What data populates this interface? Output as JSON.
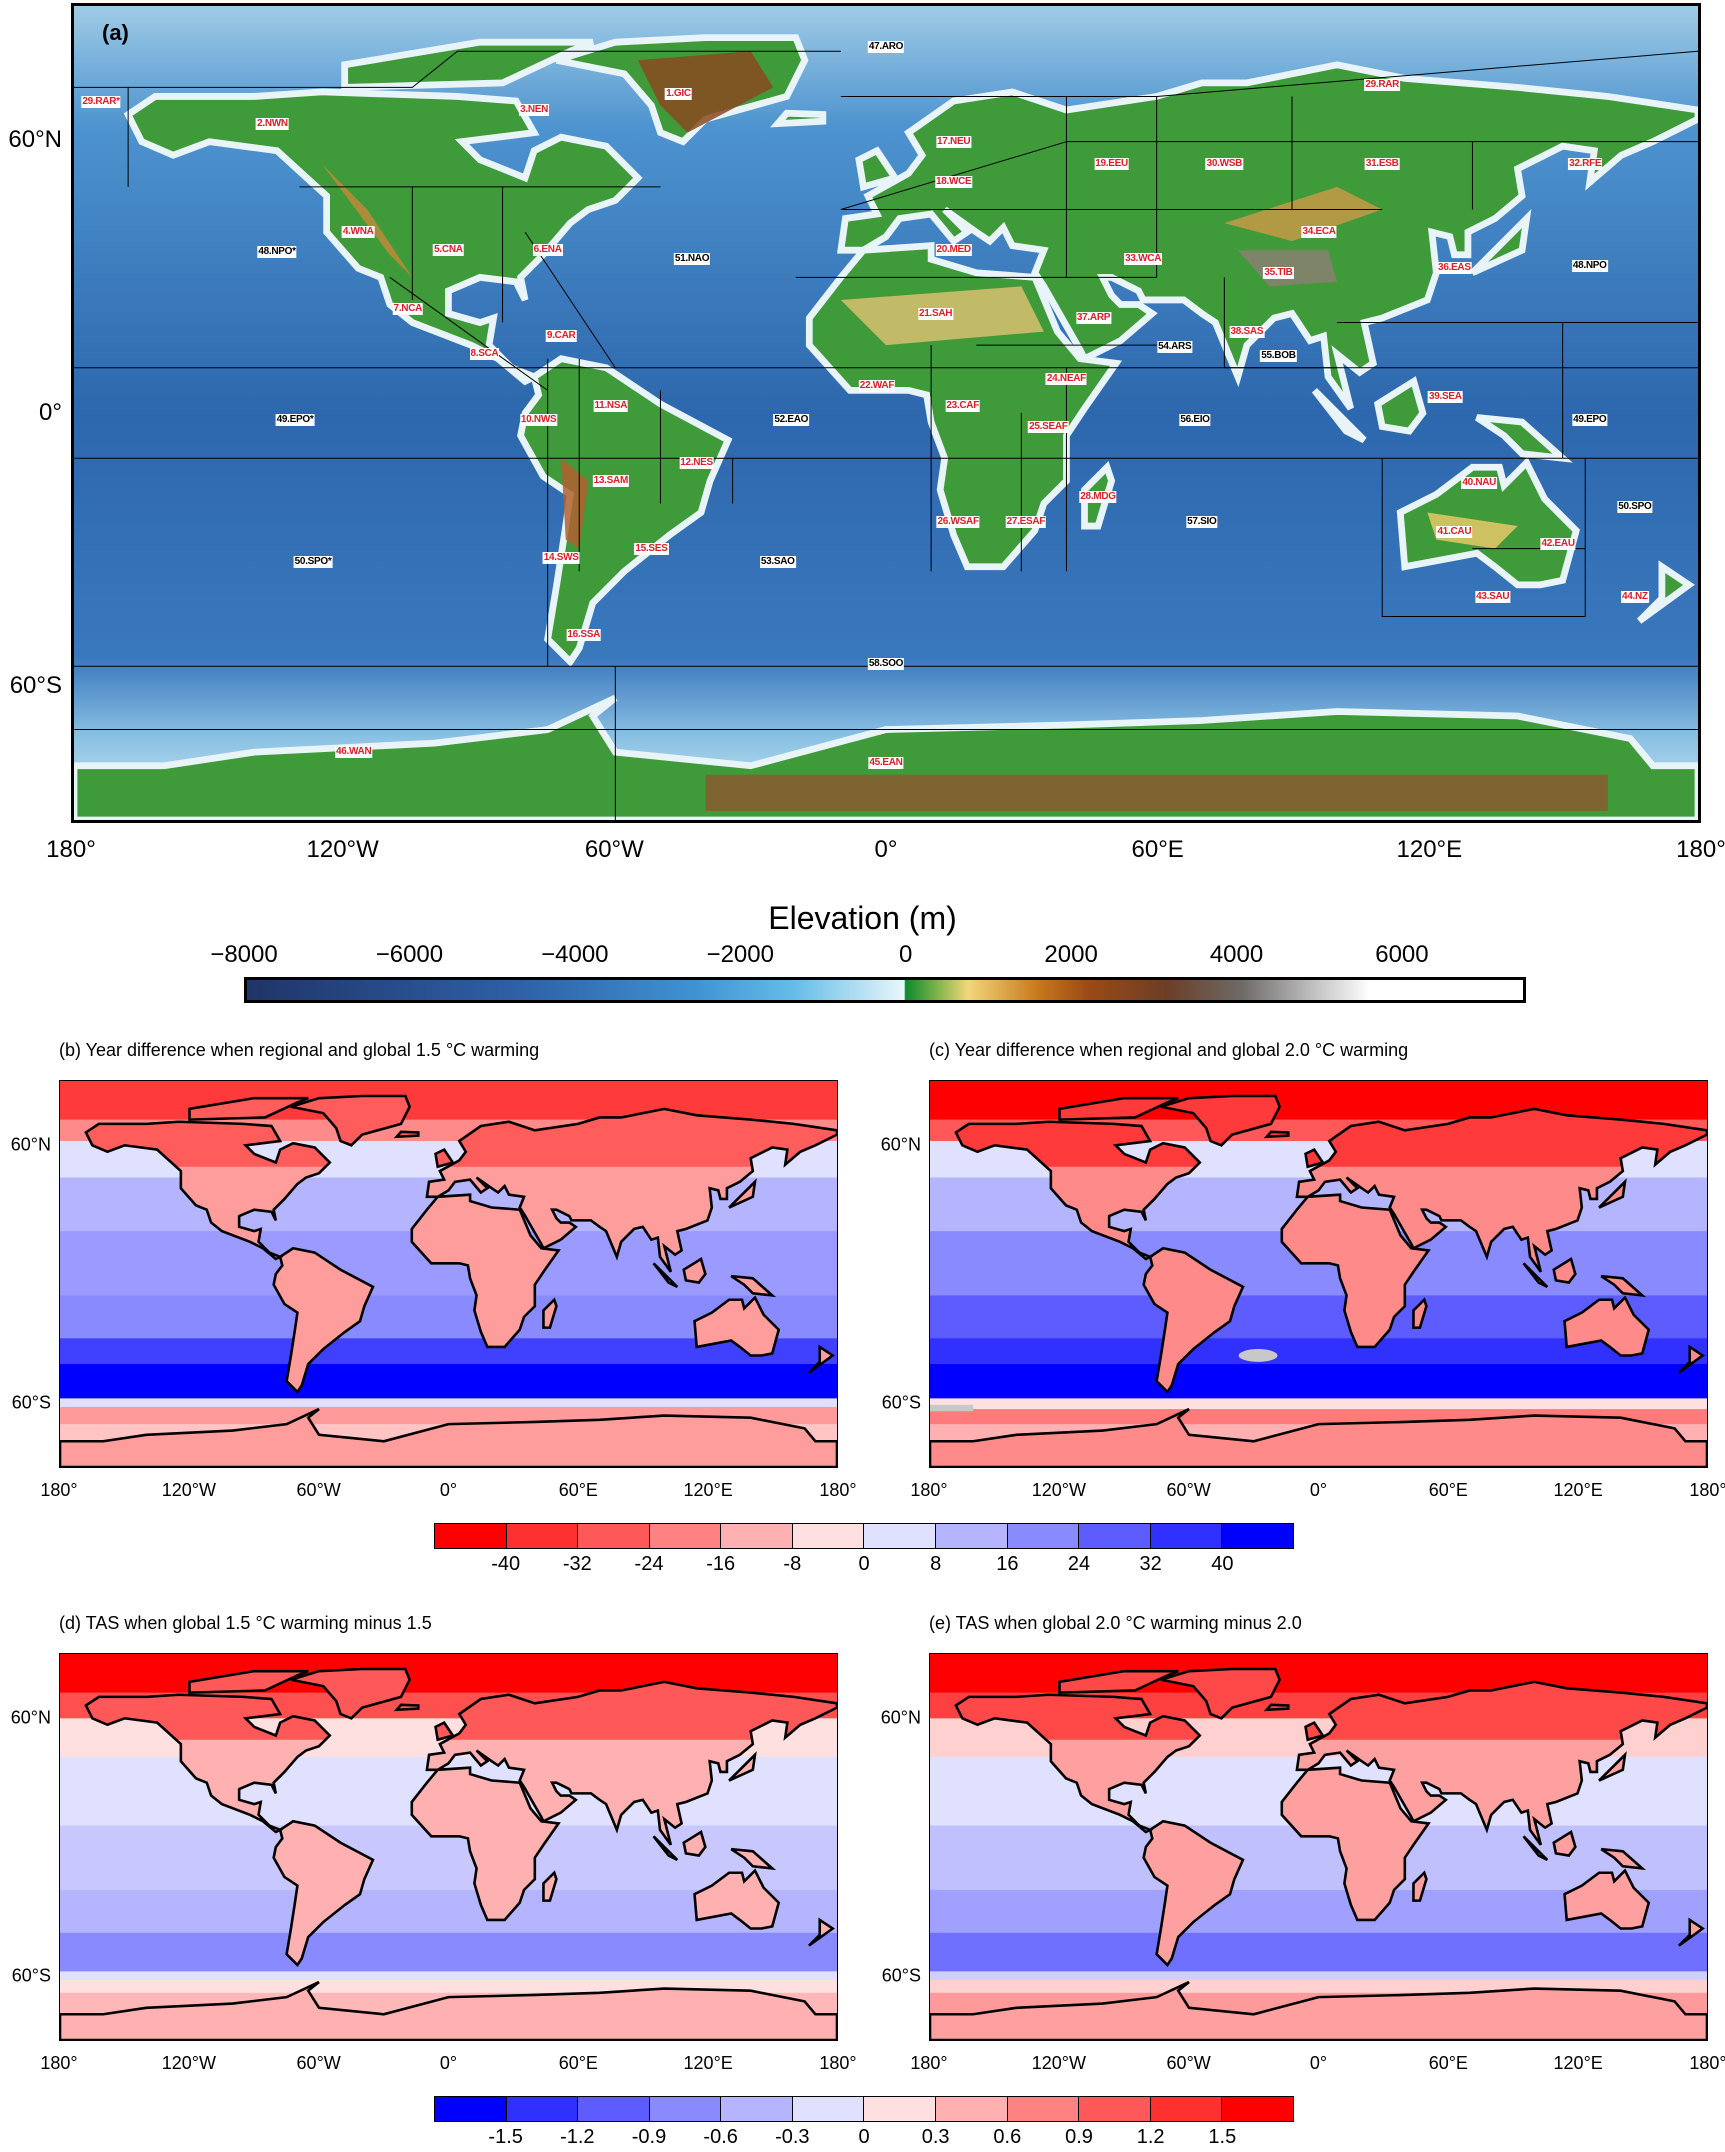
{
  "panel_a": {
    "letter": "(a)",
    "lon_labels": [
      "180°",
      "120°W",
      "60°W",
      "0°",
      "60°E",
      "120°E",
      "180°"
    ],
    "lat_labels": [
      "60°N",
      "0°",
      "60°S"
    ],
    "colorbar": {
      "title": "Elevation (m)",
      "ticks": [
        "−8000",
        "−6000",
        "−4000",
        "−2000",
        "0",
        "2000",
        "4000",
        "6000"
      ],
      "tick_values": [
        -8000,
        -6000,
        -4000,
        -2000,
        0,
        2000,
        4000,
        6000
      ],
      "range": [
        -8000,
        7500
      ]
    },
    "land_regions": [
      "1.GIC",
      "2.NWN",
      "3.NEN",
      "4.WNA",
      "5.CNA",
      "6.ENA",
      "7.NCA",
      "8.SCA",
      "9.CAR",
      "10.NWS",
      "11.NSA",
      "12.NES",
      "13.SAM",
      "14.SWS",
      "15.SES",
      "16.SSA",
      "17.NEU",
      "18.WCE",
      "19.EEU",
      "20.MED",
      "21.SAH",
      "22.WAF",
      "23.CAF",
      "24.NEAF",
      "25.SEAF",
      "26.WSAF",
      "27.ESAF",
      "28.MDG",
      "29.RAR",
      "29.RAR*",
      "30.WSB",
      "31.ESB",
      "32.RFE",
      "33.WCA",
      "34.ECA",
      "35.TIB",
      "36.EAS",
      "37.ARP",
      "38.SAS",
      "39.SEA",
      "40.NAU",
      "41.CAU",
      "42.EAU",
      "43.SAU",
      "44.NZ",
      "45.EAN",
      "46.WAN"
    ],
    "ocean_regions": [
      "47.ARO",
      "48.NPO",
      "48.NPO*",
      "49.EPO",
      "49.EPO*",
      "50.SPO",
      "50.SPO*",
      "51.NAO",
      "52.EAO",
      "53.SAO",
      "54.ARS",
      "55.BOB",
      "56.EIO",
      "57.SIO",
      "58.SOO"
    ]
  },
  "small_maps": {
    "lon_labels": [
      "180°",
      "120°W",
      "60°W",
      "0°",
      "60°E",
      "120°E",
      "180°"
    ],
    "lat_labels": [
      "60°N",
      "60°S"
    ]
  },
  "panels": [
    {
      "id": "b",
      "title": "(b) Year difference when regional and global 1.5 °C warming"
    },
    {
      "id": "c",
      "title": "(c) Year difference when regional and global 2.0 °C warming"
    },
    {
      "id": "d",
      "title": "(d) TAS when global 1.5 °C warming minus 1.5"
    },
    {
      "id": "e",
      "title": "(e) TAS when global 2.0 °C warming minus 2.0"
    }
  ],
  "colorbar_year": {
    "labels": [
      "-40",
      "-32",
      "-24",
      "-16",
      "-8",
      "0",
      "8",
      "16",
      "24",
      "32",
      "40"
    ],
    "colors": [
      "#ff0000",
      "#ff3030",
      "#ff5858",
      "#ff8282",
      "#ffb0b0",
      "#ffe0e0",
      "#e0e0ff",
      "#b4b4ff",
      "#8a8aff",
      "#5c5cff",
      "#3030ff",
      "#0000ff"
    ]
  },
  "colorbar_tas": {
    "labels": [
      "-1.5",
      "-1.2",
      "-0.9",
      "-0.6",
      "-0.3",
      "0",
      "0.3",
      "0.6",
      "0.9",
      "1.2",
      "1.5"
    ],
    "colors": [
      "#0000ff",
      "#3030ff",
      "#5c5cff",
      "#8a8aff",
      "#b4b4ff",
      "#e0e0ff",
      "#ffe0e0",
      "#ffb0b0",
      "#ff8282",
      "#ff5858",
      "#ff3030",
      "#ff0000"
    ]
  },
  "missing_color": "#c8c8c8"
}
